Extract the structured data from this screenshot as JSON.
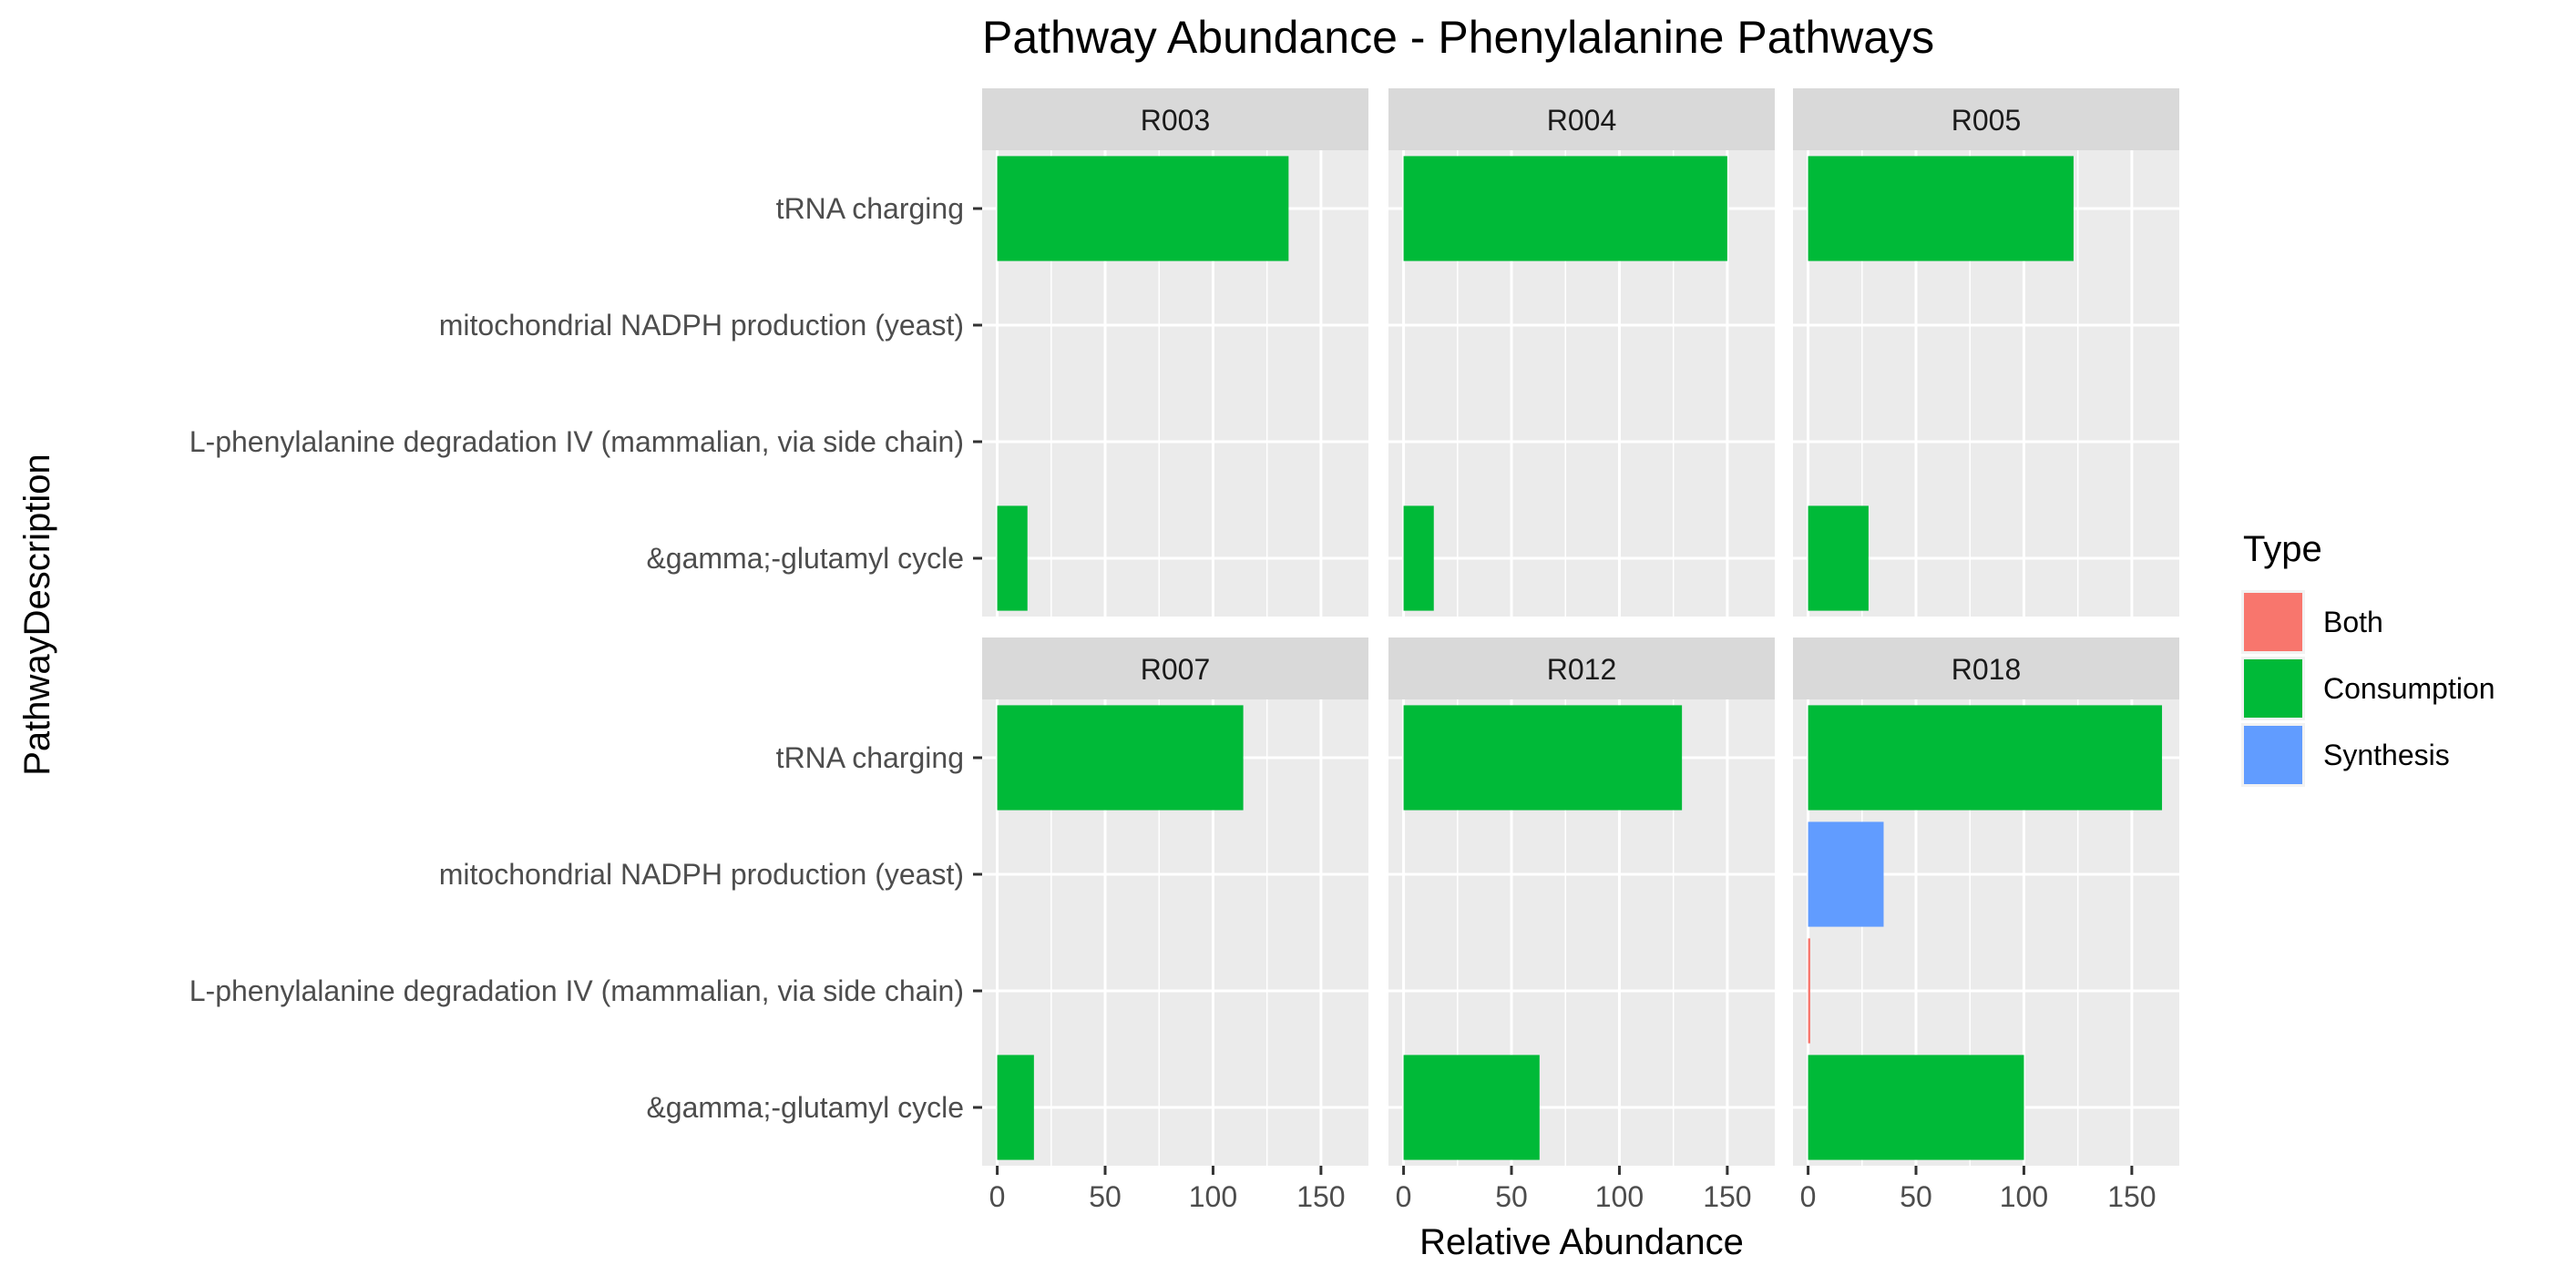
{
  "chart_data": {
    "type": "bar",
    "orientation": "horizontal",
    "title": "Pathway Abundance - Phenylalanine Pathways",
    "xlabel": "Relative Abundance",
    "ylabel": "PathwayDescription",
    "xlim": [
      -7,
      172
    ],
    "x_ticks": [
      0,
      50,
      100,
      150
    ],
    "grid": true,
    "categories": [
      "tRNA charging",
      "mitochondrial NADPH production (yeast)",
      "L-phenylalanine degradation IV (mammalian, via side chain)",
      "&gamma;-glutamyl cycle"
    ],
    "legend": {
      "title": "Type",
      "position": "right",
      "entries": [
        {
          "label": "Both",
          "color": "#F8766D"
        },
        {
          "label": "Consumption",
          "color": "#00BA38"
        },
        {
          "label": "Synthesis",
          "color": "#619CFF"
        }
      ]
    },
    "panels": [
      {
        "label": "R003",
        "bars": [
          {
            "category": "tRNA charging",
            "value": 135,
            "type": "Consumption"
          },
          {
            "category": "&gamma;-glutamyl cycle",
            "value": 14,
            "type": "Consumption"
          }
        ]
      },
      {
        "label": "R004",
        "bars": [
          {
            "category": "tRNA charging",
            "value": 150,
            "type": "Consumption"
          },
          {
            "category": "&gamma;-glutamyl cycle",
            "value": 14,
            "type": "Consumption"
          }
        ]
      },
      {
        "label": "R005",
        "bars": [
          {
            "category": "tRNA charging",
            "value": 123,
            "type": "Consumption"
          },
          {
            "category": "&gamma;-glutamyl cycle",
            "value": 28,
            "type": "Consumption"
          }
        ]
      },
      {
        "label": "R007",
        "bars": [
          {
            "category": "tRNA charging",
            "value": 114,
            "type": "Consumption"
          },
          {
            "category": "&gamma;-glutamyl cycle",
            "value": 17,
            "type": "Consumption"
          }
        ]
      },
      {
        "label": "R012",
        "bars": [
          {
            "category": "tRNA charging",
            "value": 129,
            "type": "Consumption"
          },
          {
            "category": "&gamma;-glutamyl cycle",
            "value": 63,
            "type": "Consumption"
          }
        ]
      },
      {
        "label": "R018",
        "bars": [
          {
            "category": "tRNA charging",
            "value": 164,
            "type": "Consumption"
          },
          {
            "category": "mitochondrial NADPH production (yeast)",
            "value": 35,
            "type": "Synthesis"
          },
          {
            "category": "L-phenylalanine degradation IV (mammalian, via side chain)",
            "value": 1,
            "type": "Both"
          },
          {
            "category": "&gamma;-glutamyl cycle",
            "value": 100,
            "type": "Consumption"
          }
        ]
      }
    ]
  }
}
